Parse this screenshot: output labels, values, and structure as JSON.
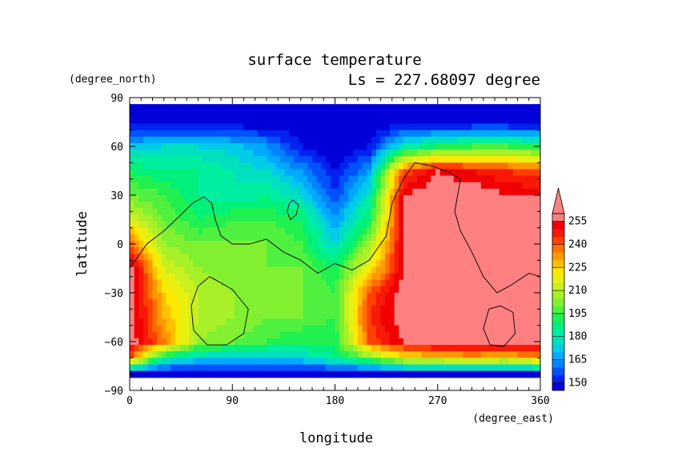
{
  "chart_data": {
    "type": "heatmap",
    "title": "surface temperature",
    "subtitle": "Ls = 227.68097 degree",
    "xlabel": "longitude",
    "ylabel": "latitude",
    "x_unit": "(degree_east)",
    "y_unit": "(degree_north)",
    "xlim": [
      0,
      360
    ],
    "ylim": [
      -90,
      90
    ],
    "x_ticks": [
      "0",
      "90",
      "180",
      "270",
      "360"
    ],
    "y_ticks": [
      "90",
      "60",
      "30",
      "0",
      "−30",
      "−60",
      "−90"
    ],
    "colorbar": {
      "levels": [
        145,
        150,
        155,
        160,
        165,
        170,
        175,
        180,
        185,
        190,
        195,
        200,
        205,
        210,
        215,
        220,
        225,
        230,
        235,
        240,
        245,
        250,
        255
      ],
      "labels": [
        "150",
        "165",
        "180",
        "195",
        "210",
        "225",
        "240",
        "255"
      ],
      "colors": [
        "#0000d8",
        "#0022f0",
        "#0052ff",
        "#0082ff",
        "#00aaff",
        "#00cce8",
        "#00e0c0",
        "#00eea0",
        "#00f07a",
        "#20f050",
        "#50f040",
        "#80f030",
        "#a8f028",
        "#c8f020",
        "#e8f010",
        "#ffe800",
        "#ffc000",
        "#ff9800",
        "#ff7000",
        "#ff4000",
        "#f81808",
        "#f00000",
        "#ff8080"
      ],
      "extend": "max"
    },
    "values_grid": {
      "longitudes": [
        0,
        30,
        60,
        90,
        120,
        150,
        180,
        210,
        240,
        270,
        300,
        330,
        360
      ],
      "latitudes": [
        85,
        75,
        60,
        45,
        30,
        15,
        0,
        -15,
        -30,
        -45,
        -60,
        -70,
        -80
      ],
      "temperature": [
        [
          145,
          145,
          145,
          145,
          145,
          145,
          145,
          145,
          145,
          145,
          145,
          145,
          145
        ],
        [
          145,
          145,
          145,
          145,
          145,
          145,
          145,
          145,
          145,
          145,
          145,
          145,
          145
        ],
        [
          170,
          175,
          175,
          172,
          165,
          150,
          145,
          150,
          180,
          190,
          195,
          195,
          190
        ],
        [
          190,
          185,
          185,
          180,
          175,
          165,
          150,
          165,
          240,
          255,
          250,
          245,
          240
        ],
        [
          200,
          195,
          185,
          180,
          185,
          175,
          155,
          180,
          255,
          260,
          260,
          255,
          255
        ],
        [
          215,
          200,
          190,
          195,
          195,
          190,
          165,
          190,
          255,
          260,
          260,
          260,
          260
        ],
        [
          240,
          205,
          200,
          200,
          200,
          195,
          175,
          205,
          255,
          260,
          260,
          260,
          260
        ],
        [
          260,
          215,
          205,
          200,
          200,
          200,
          190,
          220,
          255,
          260,
          260,
          260,
          260
        ],
        [
          260,
          225,
          210,
          205,
          200,
          200,
          195,
          240,
          260,
          260,
          260,
          260,
          260
        ],
        [
          260,
          230,
          210,
          205,
          200,
          200,
          195,
          245,
          260,
          260,
          260,
          260,
          260
        ],
        [
          260,
          235,
          205,
          200,
          195,
          190,
          190,
          240,
          255,
          260,
          260,
          260,
          260
        ],
        [
          240,
          185,
          175,
          170,
          170,
          175,
          185,
          200,
          220,
          225,
          230,
          225,
          235
        ],
        [
          145,
          145,
          145,
          145,
          145,
          145,
          145,
          145,
          145,
          145,
          145,
          145,
          145
        ]
      ]
    },
    "contours": [
      {
        "name": "coast",
        "points": [
          [
            0,
            -15
          ],
          [
            15,
            0
          ],
          [
            30,
            8
          ],
          [
            45,
            18
          ],
          [
            55,
            25
          ],
          [
            65,
            29
          ],
          [
            72,
            25
          ],
          [
            75,
            15
          ],
          [
            80,
            5
          ],
          [
            90,
            0
          ],
          [
            105,
            0
          ],
          [
            120,
            3
          ],
          [
            135,
            -5
          ],
          [
            150,
            -10
          ],
          [
            165,
            -18
          ],
          [
            180,
            -12
          ],
          [
            195,
            -16
          ],
          [
            210,
            -10
          ],
          [
            225,
            5
          ],
          [
            230,
            25
          ],
          [
            240,
            40
          ],
          [
            250,
            50
          ],
          [
            265,
            48
          ],
          [
            280,
            44
          ],
          [
            290,
            40
          ],
          [
            285,
            20
          ],
          [
            290,
            8
          ],
          [
            300,
            -5
          ],
          [
            310,
            -20
          ],
          [
            322,
            -30
          ],
          [
            335,
            -25
          ],
          [
            350,
            -18
          ],
          [
            360,
            -20
          ]
        ]
      },
      {
        "name": "crater-west",
        "points": [
          [
            70,
            -20
          ],
          [
            90,
            -28
          ],
          [
            104,
            -40
          ],
          [
            100,
            -55
          ],
          [
            85,
            -62
          ],
          [
            68,
            -62
          ],
          [
            56,
            -53
          ],
          [
            54,
            -38
          ],
          [
            60,
            -26
          ],
          [
            70,
            -20
          ]
        ]
      },
      {
        "name": "crater-east",
        "points": [
          [
            325,
            -38
          ],
          [
            336,
            -42
          ],
          [
            338,
            -55
          ],
          [
            328,
            -63
          ],
          [
            316,
            -62
          ],
          [
            310,
            -52
          ],
          [
            315,
            -40
          ],
          [
            325,
            -38
          ]
        ]
      },
      {
        "name": "crater-north",
        "points": [
          [
            143,
            27
          ],
          [
            148,
            24
          ],
          [
            146,
            18
          ],
          [
            141,
            15
          ],
          [
            138,
            20
          ],
          [
            140,
            25
          ],
          [
            143,
            27
          ]
        ]
      }
    ]
  }
}
